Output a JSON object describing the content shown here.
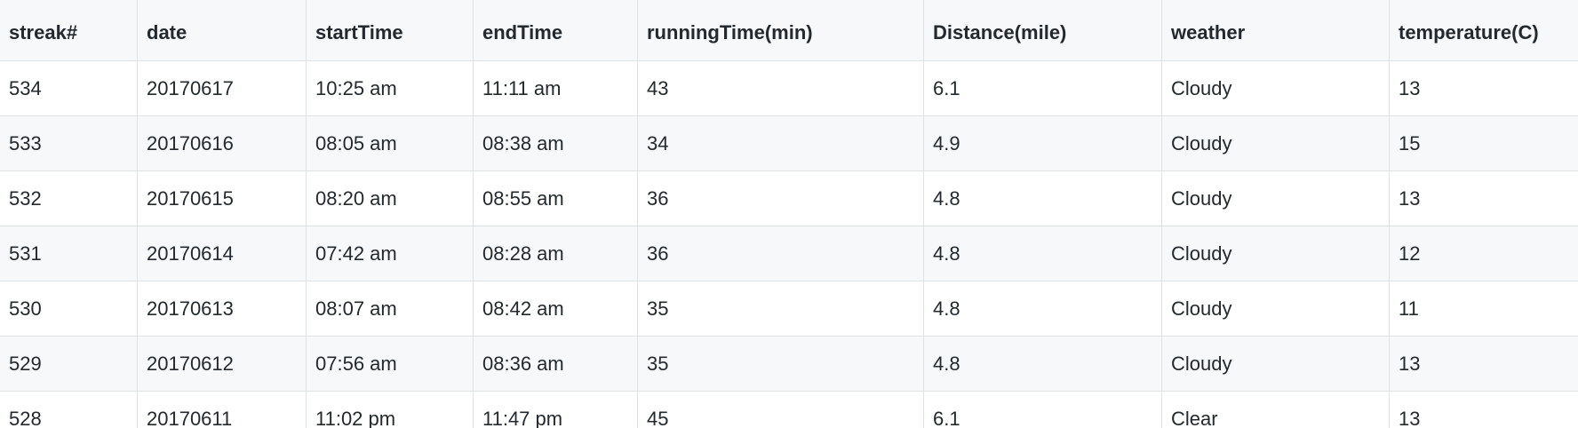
{
  "table": {
    "headers": [
      "streak#",
      "date",
      "startTime",
      "endTime",
      "runningTime(min)",
      "Distance(mile)",
      "weather",
      "temperature(C)"
    ],
    "rows": [
      [
        "534",
        "20170617",
        "10:25 am",
        "11:11 am",
        "43",
        "6.1",
        "Cloudy",
        "13"
      ],
      [
        "533",
        "20170616",
        "08:05 am",
        "08:38 am",
        "34",
        "4.9",
        "Cloudy",
        "15"
      ],
      [
        "532",
        "20170615",
        "08:20 am",
        "08:55 am",
        "36",
        "4.8",
        "Cloudy",
        "13"
      ],
      [
        "531",
        "20170614",
        "07:42 am",
        "08:28 am",
        "36",
        "4.8",
        "Cloudy",
        "12"
      ],
      [
        "530",
        "20170613",
        "08:07 am",
        "08:42 am",
        "35",
        "4.8",
        "Cloudy",
        "11"
      ],
      [
        "529",
        "20170612",
        "07:56 am",
        "08:36 am",
        "35",
        "4.8",
        "Cloudy",
        "13"
      ],
      [
        "528",
        "20170611",
        "11:02 pm",
        "11:47 pm",
        "45",
        "6.1",
        "Clear",
        "13"
      ]
    ]
  }
}
